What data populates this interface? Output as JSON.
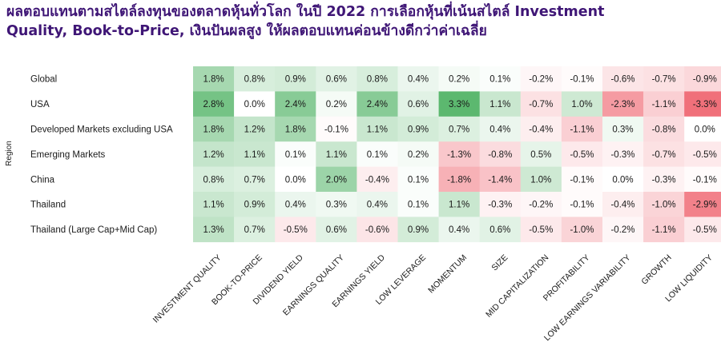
{
  "title": {
    "line1": "ผลตอบแทนตามสไตล์ลงทุนของตลาดหุ้นทั่วโลก ในปี 2022 การเลือกหุ้นที่เน้นสไตล์ Investment",
    "line2": "Quality, Book-to-Price, เงินปันผลสูง ให้ผลตอบแทนค่อนข้างดีกว่าค่าเฉลี่ย"
  },
  "chart_data": {
    "type": "heatmap",
    "ylabel": "Region",
    "rows": [
      "Global",
      "USA",
      "Developed Markets excluding USA",
      "Emerging Markets",
      "China",
      "Thailand",
      "Thailand (Large Cap+Mid Cap)"
    ],
    "columns": [
      "INVESTMENT QUALITY",
      "BOOK-TO-PRICE",
      "DIVIDEND YIELD",
      "EARNINGS QUALITY",
      "EARNINGS YIELD",
      "LOW LEVERAGE",
      "MOMENTUM",
      "SIZE",
      "MID CAPITALIZATION",
      "PROFITABILITY",
      "LOW EARNINGS VARIABILITY",
      "GROWTH",
      "LOW LIQUIDITY"
    ],
    "values": [
      [
        1.8,
        0.8,
        0.9,
        0.6,
        0.8,
        0.4,
        0.2,
        0.1,
        -0.2,
        -0.1,
        -0.6,
        -0.7,
        -0.9
      ],
      [
        2.8,
        0.0,
        2.4,
        0.2,
        2.4,
        0.6,
        3.3,
        1.1,
        -0.7,
        1.0,
        -2.3,
        -1.1,
        -3.3
      ],
      [
        1.8,
        1.2,
        1.8,
        -0.1,
        1.1,
        0.9,
        0.7,
        0.4,
        -0.4,
        -1.1,
        0.3,
        -0.8,
        0.0
      ],
      [
        1.2,
        1.1,
        0.1,
        1.1,
        0.1,
        0.2,
        -1.3,
        -0.8,
        0.5,
        -0.5,
        -0.3,
        -0.7,
        -0.5
      ],
      [
        0.8,
        0.7,
        0.0,
        2.0,
        -0.4,
        0.1,
        -1.8,
        -1.4,
        1.0,
        -0.1,
        0.0,
        -0.3,
        -0.1
      ],
      [
        1.1,
        0.9,
        0.4,
        0.3,
        0.4,
        0.1,
        1.1,
        -0.3,
        -0.2,
        -0.1,
        -0.4,
        -1.0,
        -2.9
      ],
      [
        1.3,
        0.7,
        -0.5,
        0.6,
        -0.6,
        0.9,
        0.4,
        0.6,
        -0.5,
        -1.0,
        -0.2,
        -1.1,
        -0.5
      ]
    ],
    "value_format": "percent_1dp",
    "colors": {
      "positive_max": "#5cb86f",
      "negative_max": "#f0707a",
      "zero": "#ffffff"
    }
  }
}
